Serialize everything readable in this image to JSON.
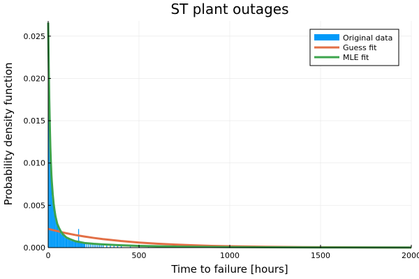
{
  "chart_data": {
    "type": "histogram+line",
    "title": "ST plant outages",
    "xlabel": "Time to failure [hours]",
    "ylabel": "Probability density function",
    "xlim": [
      0,
      2000
    ],
    "ylim": [
      0,
      0.0268
    ],
    "xticks": [
      0,
      500,
      1000,
      1500,
      2000
    ],
    "xtick_labels": [
      "0",
      "500",
      "1000",
      "1500",
      "2000"
    ],
    "yticks": [
      0,
      0.005,
      0.01,
      0.015,
      0.02,
      0.025
    ],
    "ytick_labels": [
      "0.000",
      "0.005",
      "0.010",
      "0.015",
      "0.020",
      "0.025"
    ],
    "grid": true,
    "legend_position": "top-right",
    "legend": [
      {
        "label": "Original data",
        "color": "#009AF9",
        "kind": "bar"
      },
      {
        "label": "Guess fit",
        "color": "#E26F46",
        "kind": "line"
      },
      {
        "label": "MLE fit",
        "color": "#3DA44D",
        "kind": "line"
      }
    ],
    "histogram": {
      "bin_width": 5,
      "bin_starts": [
        0,
        5,
        10,
        15,
        20,
        25,
        30,
        35,
        40,
        45,
        50,
        55,
        60,
        65,
        70,
        75,
        80,
        85,
        90,
        95,
        100,
        105,
        110,
        115,
        120,
        125,
        130,
        135,
        140,
        145,
        150,
        155,
        160,
        165,
        170,
        175,
        180,
        185,
        190,
        195,
        200,
        210,
        220,
        230,
        240,
        250,
        260,
        270,
        280,
        290,
        300,
        320,
        340,
        360,
        380,
        400,
        450,
        500,
        550,
        600,
        650,
        700,
        800,
        900,
        1000,
        1200,
        1400,
        1600,
        1800
      ],
      "densities": [
        0.0258,
        0.0135,
        0.01,
        0.008,
        0.006,
        0.005,
        0.0045,
        0.0038,
        0.0032,
        0.0028,
        0.0025,
        0.0022,
        0.002,
        0.0018,
        0.0016,
        0.0015,
        0.0014,
        0.0013,
        0.0012,
        0.0011,
        0.0011,
        0.001,
        0.001,
        0.0009,
        0.0009,
        0.0008,
        0.0008,
        0.0008,
        0.0007,
        0.0007,
        0.0007,
        0.0007,
        0.0007,
        0.0022,
        0.0008,
        0.0006,
        0.0006,
        0.0006,
        0.0005,
        0.0005,
        0.0005,
        0.0005,
        0.0004,
        0.0004,
        0.0004,
        0.0004,
        0.0004,
        0.0003,
        0.0003,
        0.0003,
        0.0003,
        0.0003,
        0.0003,
        0.0003,
        0.0002,
        0.0002,
        0.0002,
        0.0002,
        0.0001,
        0.0001,
        0.0001,
        0.0001,
        0.0001,
        0.0001,
        0.0001,
        5e-05,
        5e-05,
        4e-05,
        3e-05
      ]
    },
    "series": [
      {
        "name": "Guess fit",
        "x": [
          0,
          25,
          50,
          75,
          100,
          150,
          200,
          250,
          300,
          400,
          500,
          600,
          700,
          800,
          900,
          1000,
          1200,
          1400,
          1600,
          1800,
          2000
        ],
        "y": [
          0.00222,
          0.00208,
          0.00195,
          0.00182,
          0.0017,
          0.00149,
          0.00131,
          0.00115,
          0.00101,
          0.00078,
          0.0006,
          0.00046,
          0.00036,
          0.00028,
          0.00021,
          0.00016,
          0.0001,
          6e-05,
          4e-05,
          2e-05,
          1e-05
        ]
      },
      {
        "name": "MLE fit",
        "x": [
          0,
          2,
          4,
          6,
          8,
          10,
          12,
          15,
          18,
          20,
          25,
          30,
          35,
          40,
          50,
          60,
          70,
          80,
          100,
          120,
          150,
          200,
          250,
          300,
          400,
          500,
          700,
          1000,
          1500,
          2000
        ],
        "y": [
          0.0266,
          0.023,
          0.02,
          0.0175,
          0.0155,
          0.0135,
          0.0118,
          0.01,
          0.0085,
          0.0078,
          0.0063,
          0.0052,
          0.0044,
          0.0037,
          0.0028,
          0.0023,
          0.0019,
          0.0016,
          0.0012,
          0.001,
          0.00075,
          0.00055,
          0.00045,
          0.00038,
          0.00028,
          0.00021,
          0.00012,
          6e-05,
          2e-05,
          1e-05
        ]
      }
    ]
  }
}
